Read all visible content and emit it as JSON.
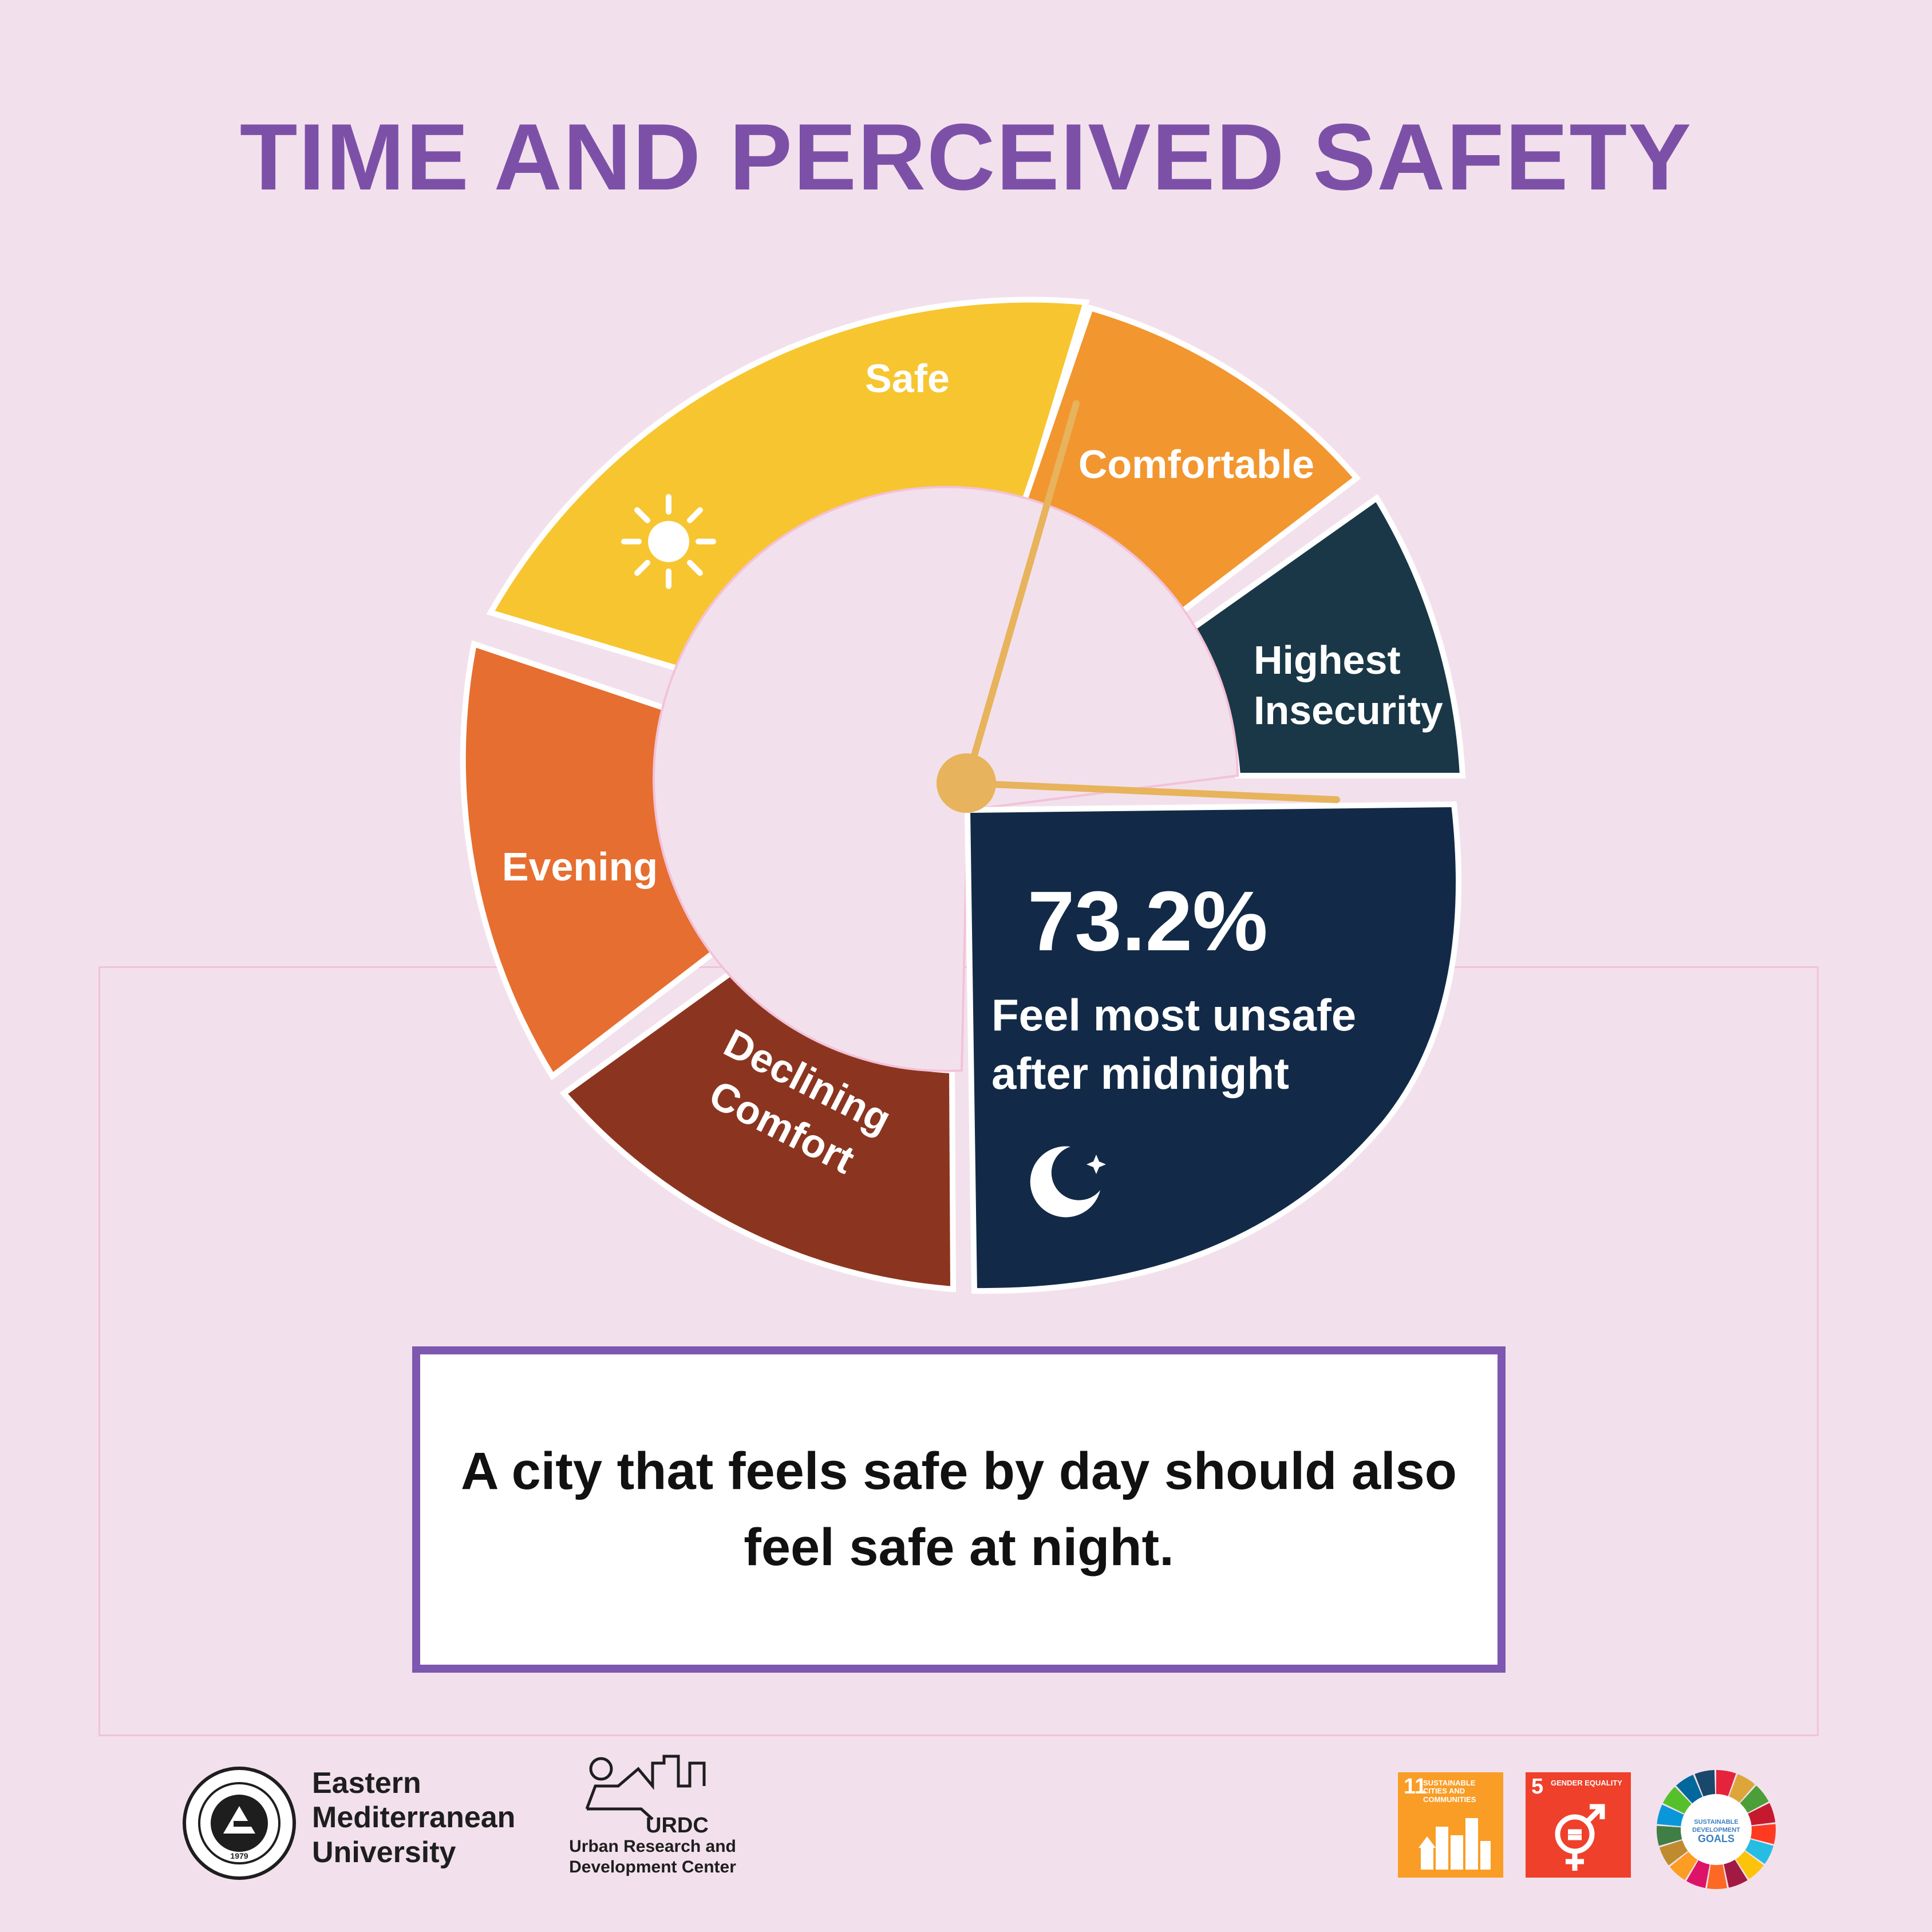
{
  "title": "TIME AND PERCEIVED SAFETY",
  "segments": [
    {
      "label_lines": [
        "Safe"
      ],
      "color": "#f7c530"
    },
    {
      "label_lines": [
        "Comfortable"
      ],
      "color": "#f29630"
    },
    {
      "label_lines": [
        "Highest",
        "Insecurity"
      ],
      "color": "#1a3747"
    },
    {
      "label_lines": [
        "Declining",
        "Comfort"
      ],
      "color": "#8b3520"
    },
    {
      "label_lines": [
        "Evening"
      ],
      "color": "#e66e30"
    }
  ],
  "highlight": {
    "value": "73.2%",
    "text_lines": [
      "Feel most unsafe",
      "after midnight"
    ],
    "color": "#122a47"
  },
  "hands_color": "#e7b35c",
  "icons": {
    "sun": "sun-icon",
    "moon": "moon-star-icon"
  },
  "callout": {
    "text": "A city that feels safe by day should also feel safe at night."
  },
  "footer": {
    "emu": {
      "name_lines": [
        "Eastern",
        "Mediterranean",
        "University"
      ],
      "seal_year": "1979"
    },
    "urdc": {
      "abbr": "URDC",
      "name_lines": [
        "Urban Research and",
        "Development Center"
      ]
    },
    "sdg11": {
      "number": "11",
      "label": "SUSTAINABLE CITIES AND COMMUNITIES",
      "color": "#f99d26"
    },
    "sdg5": {
      "number": "5",
      "label": "GENDER EQUALITY",
      "color": "#ef402b"
    },
    "sdg_wheel": {
      "label_lines": [
        "SUSTAINABLE",
        "DEVELOPMENT",
        "GOALS"
      ]
    }
  }
}
